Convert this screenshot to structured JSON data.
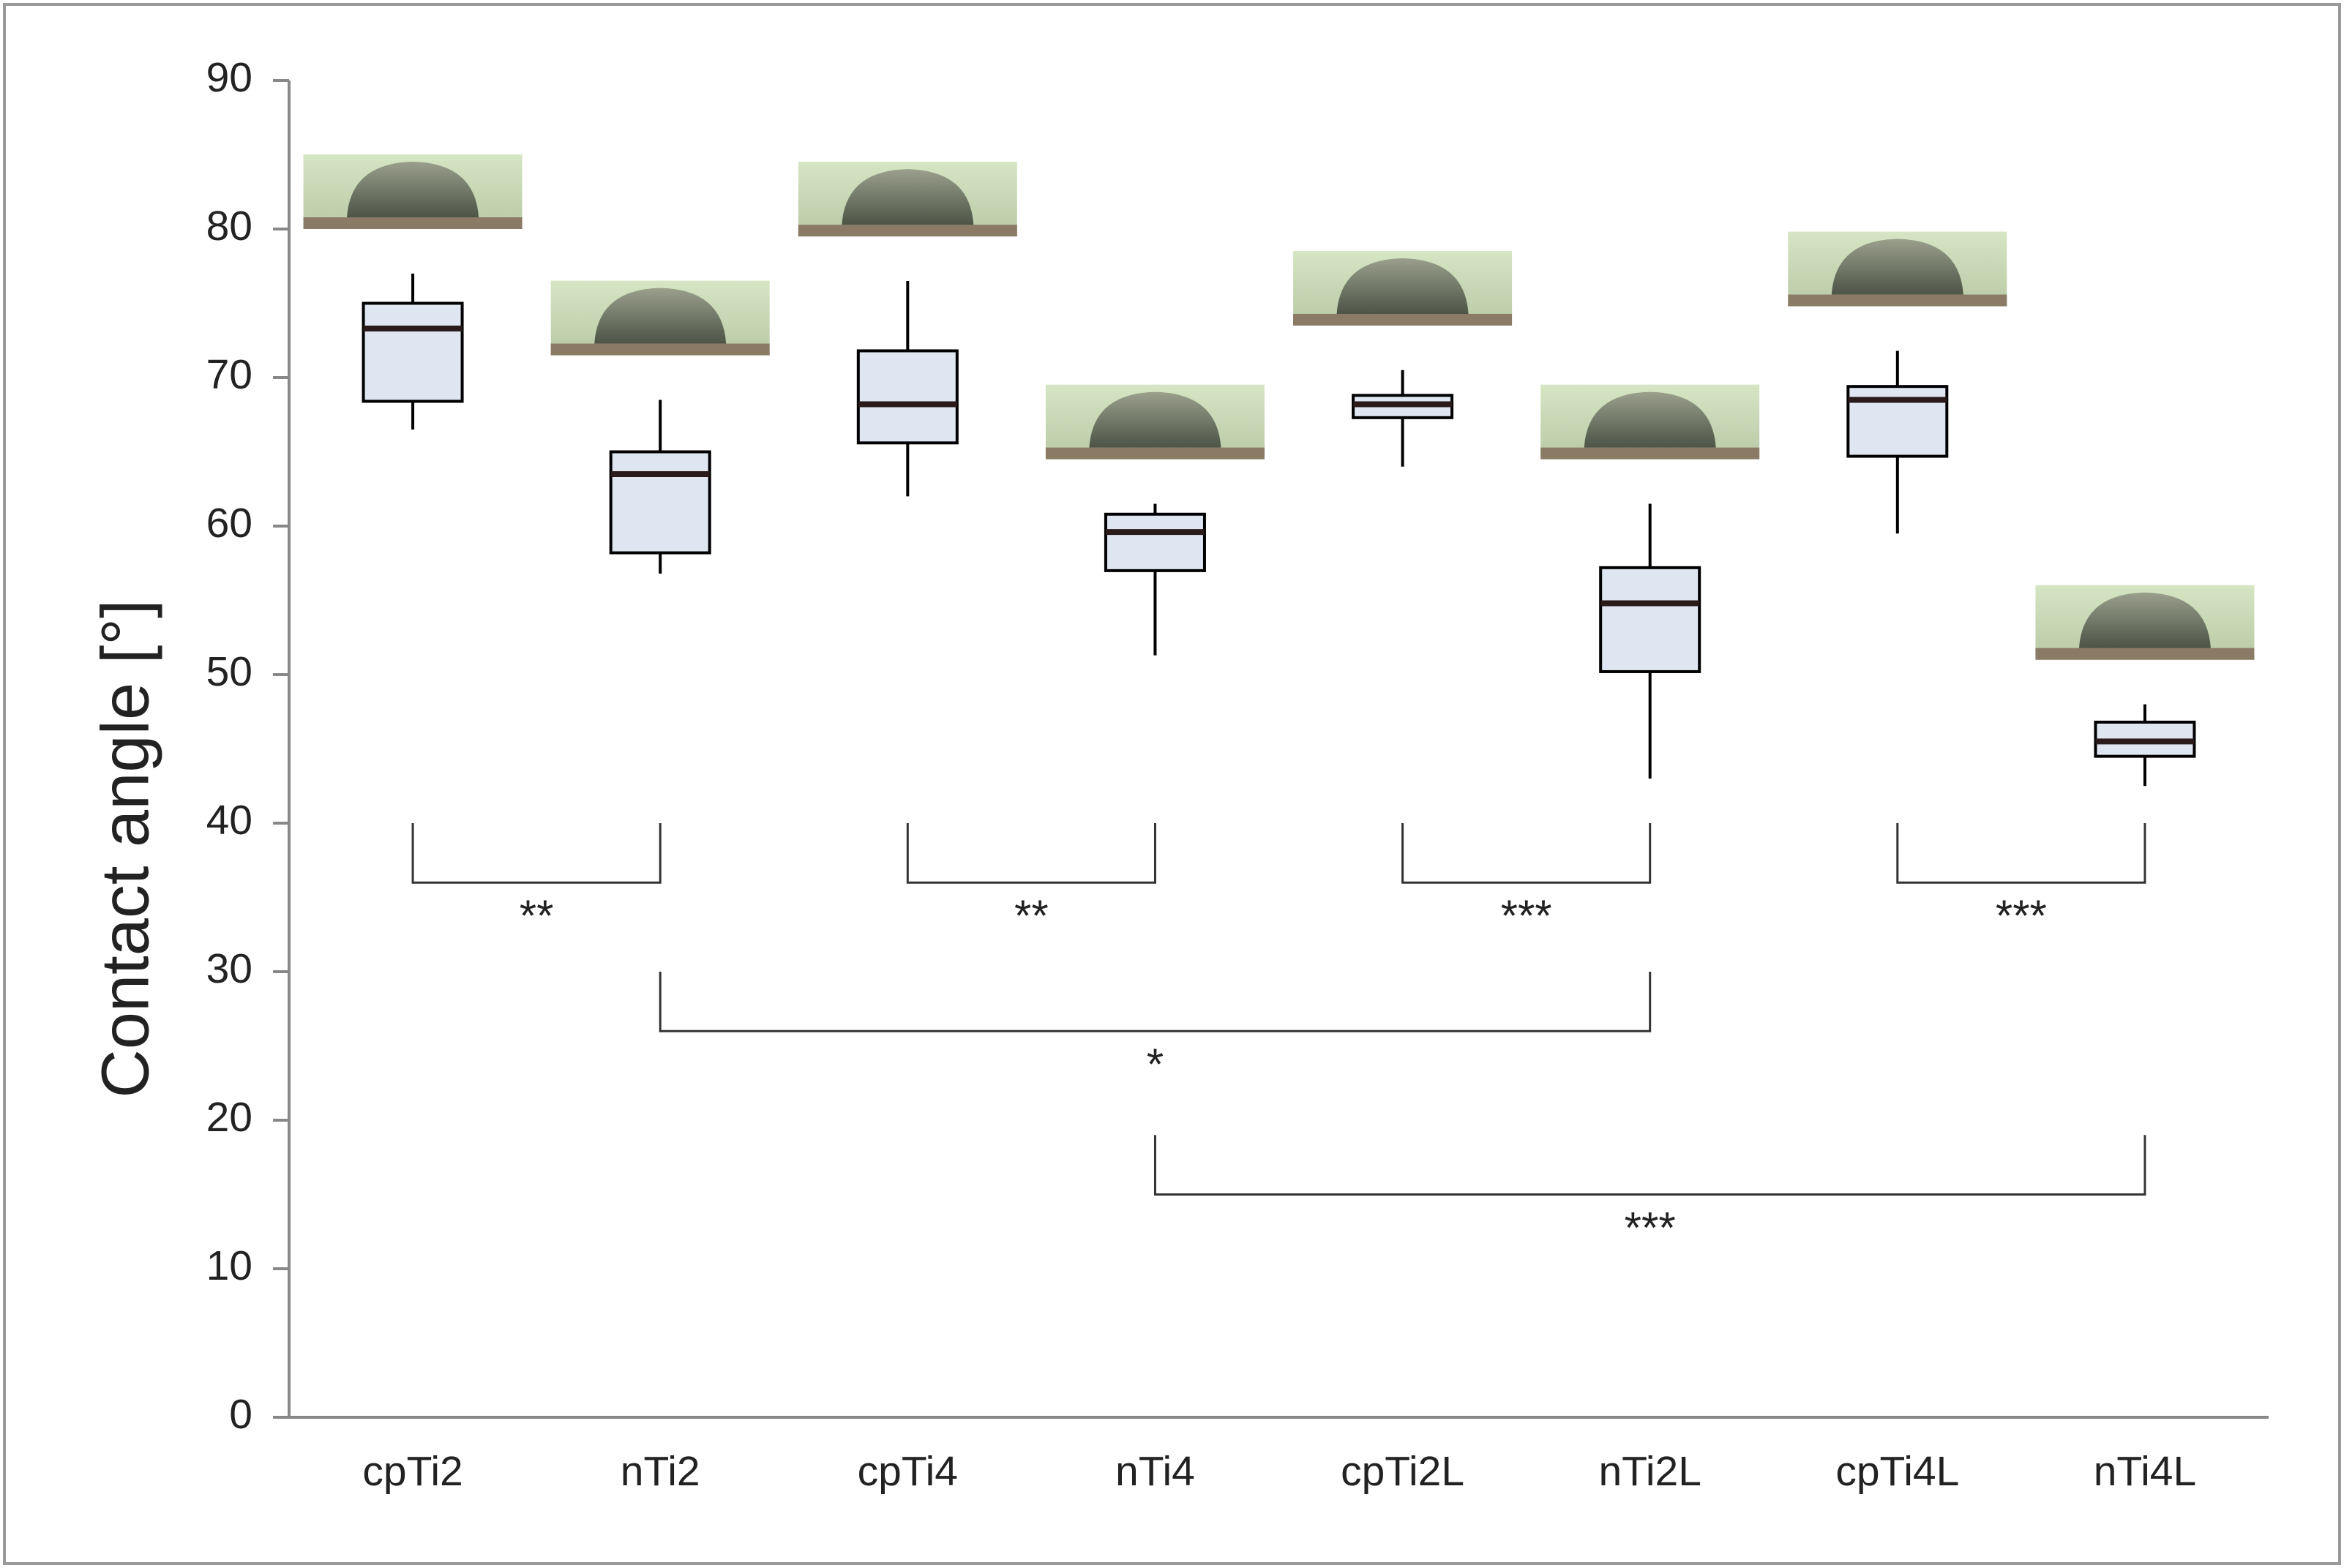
{
  "chart_data": {
    "type": "box",
    "y_label": "Contact angle [°]",
    "categories": [
      "cpTi2",
      "nTi2",
      "cpTi4",
      "nTi4",
      "cpTi2L",
      "nTi2L",
      "cpTi4L",
      "nTi4L"
    ],
    "boxes": [
      {
        "min": 66.5,
        "q1": 68.4,
        "median": 73.3,
        "q3": 75,
        "max": 77
      },
      {
        "min": 56.8,
        "q1": 58.2,
        "median": 63.5,
        "q3": 65,
        "max": 68.5
      },
      {
        "min": 62,
        "q1": 65.6,
        "median": 68.2,
        "q3": 71.8,
        "max": 76.5
      },
      {
        "min": 51.3,
        "q1": 57,
        "median": 59.6,
        "q3": 60.8,
        "max": 61.5
      },
      {
        "min": 64,
        "q1": 67.3,
        "median": 68.2,
        "q3": 68.8,
        "max": 70.5
      },
      {
        "min": 43,
        "q1": 50.2,
        "median": 54.8,
        "q3": 57.2,
        "max": 61.5
      },
      {
        "min": 59.5,
        "q1": 64.7,
        "median": 68.5,
        "q3": 69.4,
        "max": 71.8
      },
      {
        "min": 42.5,
        "q1": 44.5,
        "median": 45.5,
        "q3": 46.8,
        "max": 48
      }
    ],
    "box_color": "#dfe6f1",
    "significance": [
      {
        "from": 0,
        "to": 1,
        "y": 36,
        "label": "**"
      },
      {
        "from": 2,
        "to": 3,
        "y": 36,
        "label": "**"
      },
      {
        "from": 4,
        "to": 5,
        "y": 36,
        "label": "***"
      },
      {
        "from": 6,
        "to": 7,
        "y": 36,
        "label": "***"
      },
      {
        "from": 1,
        "to": 5,
        "y": 26,
        "label": "*"
      },
      {
        "from": 3,
        "to": 7,
        "y": 15,
        "label": "***"
      }
    ],
    "ylim": [
      0,
      90
    ],
    "yticks": [
      0,
      10,
      20,
      30,
      40,
      50,
      60,
      70,
      80,
      90
    ]
  }
}
